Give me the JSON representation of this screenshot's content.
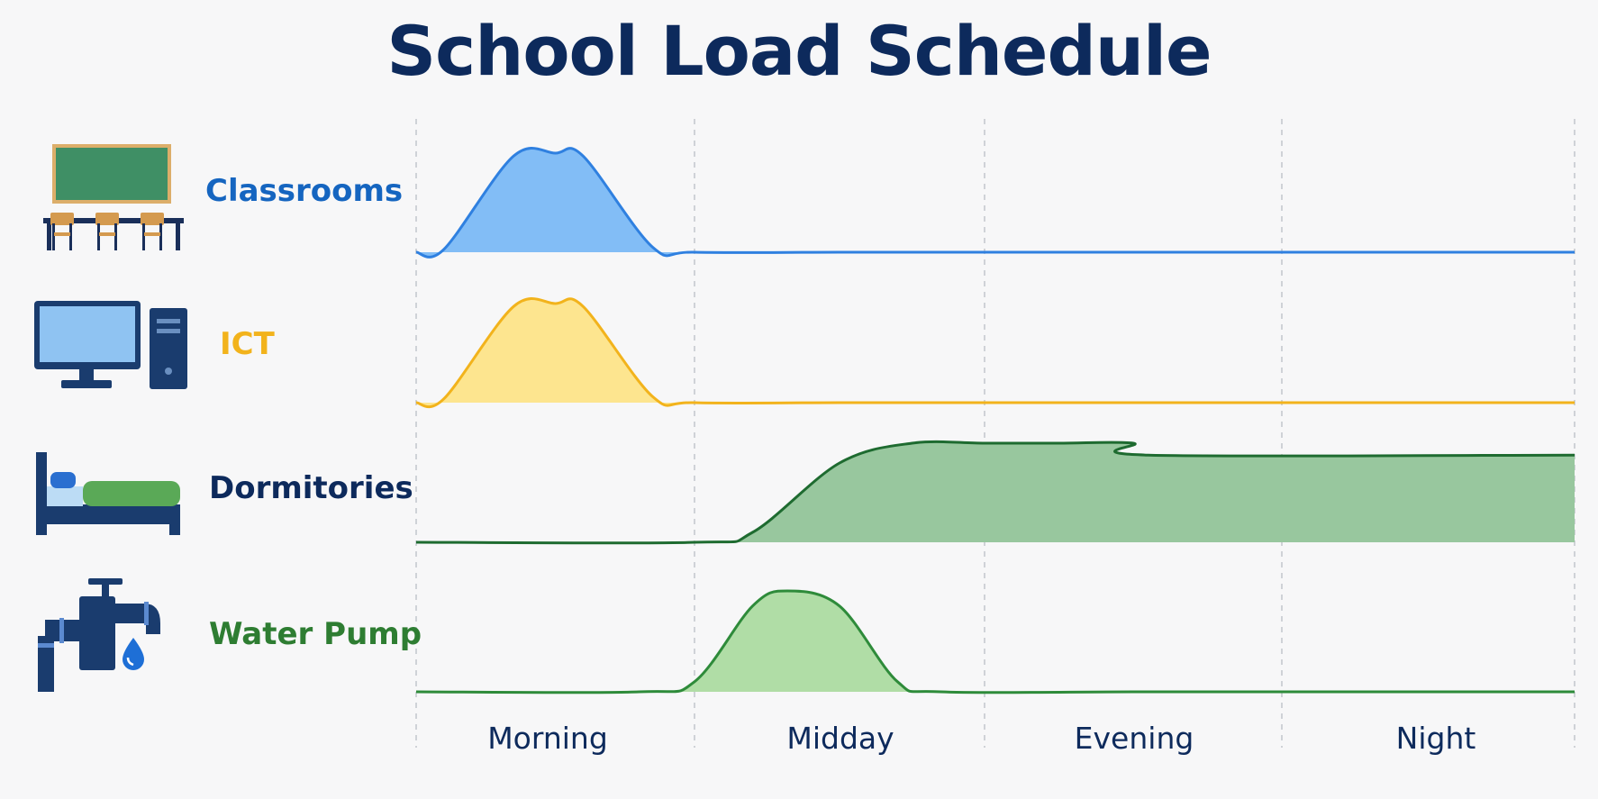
{
  "chart_data": {
    "type": "area",
    "title": "School Load Schedule",
    "x_categories": [
      "Morning",
      "Midday",
      "Evening",
      "Night"
    ],
    "grid": "vertical-dashed",
    "series": [
      {
        "name": "Classrooms",
        "color": "#1565c0",
        "line_color": "#2f80e0",
        "fill_color": "#82bdf6",
        "icon": "classroom-icon",
        "profile": [
          [
            0,
            0
          ],
          [
            0.1,
            0.03
          ],
          [
            0.35,
            0.97
          ],
          [
            0.5,
            1
          ],
          [
            0.6,
            0.97
          ],
          [
            0.85,
            0.05
          ],
          [
            1,
            0
          ],
          [
            1.5,
            0
          ],
          [
            2,
            0
          ]
        ]
      },
      {
        "name": "ICT",
        "color": "#f2b31c",
        "line_color": "#f2b31c",
        "fill_color": "#fde58f",
        "icon": "computer-icon",
        "profile": [
          [
            0,
            0
          ],
          [
            0.1,
            0.04
          ],
          [
            0.35,
            0.97
          ],
          [
            0.5,
            1
          ],
          [
            0.6,
            0.97
          ],
          [
            0.85,
            0.06
          ],
          [
            1,
            0
          ],
          [
            1.5,
            0
          ],
          [
            2,
            0
          ]
        ]
      },
      {
        "name": "Dormitories",
        "color": "#0d2a5c",
        "line_color": "#1e6b30",
        "fill_color": "#98c79e",
        "icon": "bed-icon",
        "profile": [
          [
            0,
            0
          ],
          [
            1,
            0
          ],
          [
            1.2,
            0.1
          ],
          [
            1.5,
            0.8
          ],
          [
            1.75,
            1
          ],
          [
            2,
            1
          ],
          [
            2.25,
            1
          ],
          [
            2.5,
            1
          ],
          [
            2.55,
            0.88
          ]
        ]
      },
      {
        "name": "Water Pump",
        "color": "#2e7d32",
        "line_color": "#2e8b3a",
        "fill_color": "#b0dda6",
        "icon": "water-pump-icon",
        "profile": [
          [
            0,
            0
          ],
          [
            0.8,
            0
          ],
          [
            1,
            0.1
          ],
          [
            1.2,
            0.85
          ],
          [
            1.32,
            1
          ],
          [
            1.5,
            0.85
          ],
          [
            1.7,
            0.1
          ],
          [
            1.85,
            0
          ],
          [
            2.5,
            0
          ],
          [
            3,
            0
          ]
        ]
      }
    ]
  }
}
